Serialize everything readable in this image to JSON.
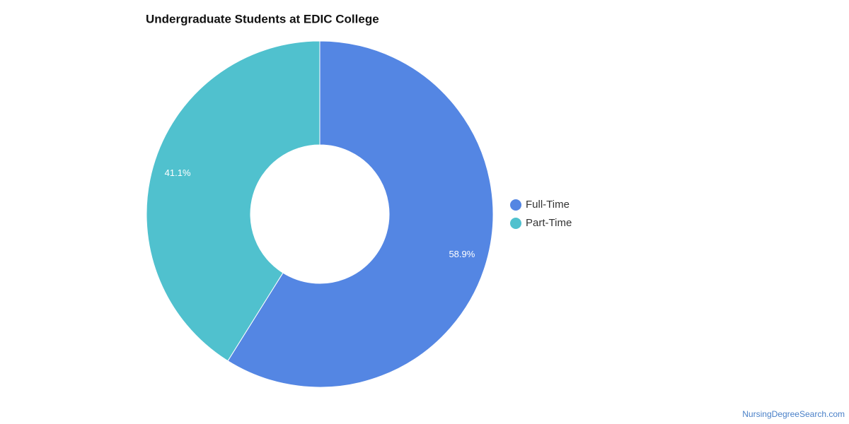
{
  "chart_data": {
    "type": "donut",
    "title": "Undergraduate Students at EDIC College",
    "categories": [
      "Full-Time",
      "Part-Time"
    ],
    "values": [
      58.9,
      41.1
    ],
    "value_labels": [
      "58.9%",
      "41.1%"
    ],
    "colors": [
      "#5486e3",
      "#50c1ce"
    ],
    "legend": "right",
    "credit": "NursingDegreeSearch.com"
  }
}
